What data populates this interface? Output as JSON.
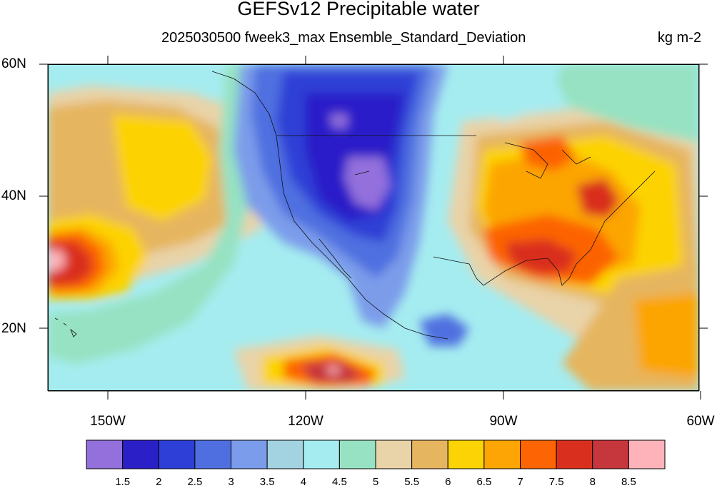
{
  "title": "GEFSv12 Precipitable water",
  "subtitle": "2025030500 fweek3_max Ensemble_Standard_Deviation",
  "units": "kg m-2",
  "map": {
    "region": "North America and eastern Pacific",
    "lat_labels": [
      "60N",
      "40N",
      "20N"
    ],
    "lon_labels": [
      "150W",
      "120W",
      "90W",
      "60W"
    ],
    "lat_range": [
      10,
      60
    ],
    "lon_range": [
      -159,
      -60
    ]
  },
  "colorbar": {
    "levels": [
      "1.5",
      "2",
      "2.5",
      "3",
      "3.5",
      "4",
      "4.5",
      "5",
      "5.5",
      "6",
      "6.5",
      "7",
      "7.5",
      "8",
      "8.5"
    ],
    "colors": [
      "#9370db",
      "#2b1fc8",
      "#2d3fd6",
      "#4f6fe0",
      "#7b9cea",
      "#a3d2e0",
      "#a5ecf0",
      "#96e2c2",
      "#e9d3a8",
      "#e6b55f",
      "#fcd304",
      "#fca504",
      "#fc6404",
      "#d92f1e",
      "#c6363d",
      "#fdb3b9"
    ]
  }
}
